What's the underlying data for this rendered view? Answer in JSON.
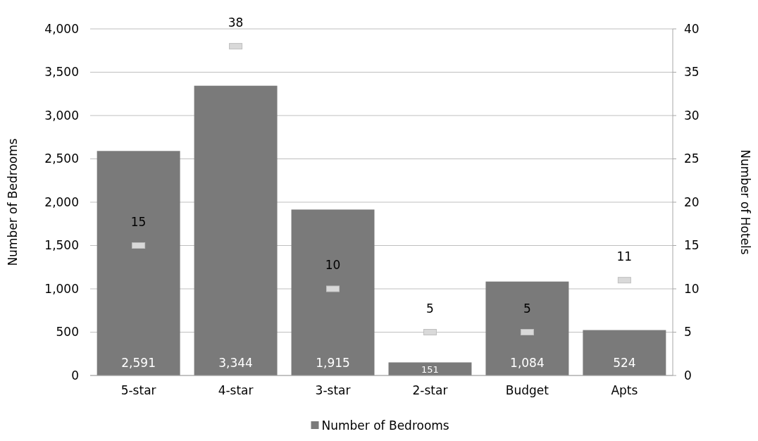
{
  "chart_data": {
    "type": "bar",
    "xlabel": null,
    "ylabel": "Number of Bedrooms",
    "y2label": "Number of Hotels",
    "categories": [
      "5-star",
      "4-star",
      "3-star",
      "2-star",
      "Budget",
      "Apts"
    ],
    "series": [
      {
        "name": "Number of Bedrooms",
        "color": "#7a7a7a",
        "values": [
          2591,
          3344,
          1915,
          151,
          1084,
          524
        ],
        "value_labels": [
          "2,591",
          "3,344",
          "1,915",
          "151",
          "1,084",
          "524"
        ]
      },
      {
        "type": "scatter",
        "axis": "y2",
        "color": "#d9d9d9",
        "values": [
          15,
          38,
          10,
          5,
          5,
          11
        ],
        "value_labels": [
          "15",
          "38",
          "10",
          "5",
          "5",
          "11"
        ]
      }
    ],
    "ylim": [
      0,
      4000
    ],
    "yticks": [
      0,
      500,
      {
        "value": 1000,
        "label": "1,000"
      },
      {
        "value": 1500,
        "label": "1,500"
      },
      {
        "value": 2000,
        "label": "2,000"
      },
      {
        "value": 2500,
        "label": "2,500"
      },
      {
        "value": 3000,
        "label": "3,000"
      },
      {
        "value": 3500,
        "label": "3,500"
      },
      {
        "value": 4000,
        "label": "4,000"
      }
    ],
    "y2lim": [
      0,
      40
    ],
    "y2ticks": [
      0,
      5,
      10,
      15,
      20,
      25,
      30,
      35,
      40
    ],
    "grid": "y",
    "marker": "square",
    "legend": "bottom"
  }
}
